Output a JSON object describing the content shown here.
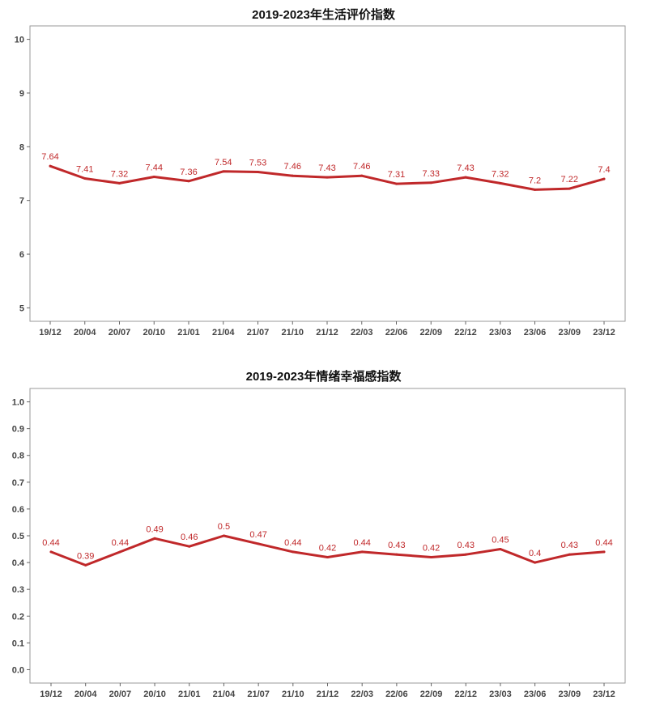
{
  "chart_data": [
    {
      "type": "line",
      "title": "2019-2023年生活评价指数",
      "xlabel": "",
      "ylabel": "",
      "categories": [
        "19/12",
        "20/04",
        "20/07",
        "20/10",
        "21/01",
        "21/04",
        "21/07",
        "21/10",
        "21/12",
        "22/03",
        "22/06",
        "22/09",
        "22/12",
        "23/03",
        "23/06",
        "23/09",
        "23/12"
      ],
      "series": [
        {
          "values": [
            7.64,
            7.41,
            7.32,
            7.44,
            7.36,
            7.54,
            7.53,
            7.46,
            7.43,
            7.46,
            7.31,
            7.33,
            7.43,
            7.32,
            7.2,
            7.22,
            7.4
          ]
        }
      ],
      "data_labels": [
        "7.64",
        "7.41",
        "7.32",
        "7.44",
        "7.36",
        "7.54",
        "7.53",
        "7.46",
        "7.43",
        "7.46",
        "7.31",
        "7.33",
        "7.43",
        "7.32",
        "7.2",
        "7.22",
        "7.4"
      ],
      "ylim": [
        4.75,
        10.25
      ],
      "yticks": [
        "5",
        "6",
        "7",
        "8",
        "9",
        "10"
      ],
      "grid": false,
      "line_color": "#c0282a"
    },
    {
      "type": "line",
      "title": "2019-2023年情绪幸福感指数",
      "xlabel": "",
      "ylabel": "",
      "categories": [
        "19/12",
        "20/04",
        "20/07",
        "20/10",
        "21/01",
        "21/04",
        "21/07",
        "21/10",
        "21/12",
        "22/03",
        "22/06",
        "22/09",
        "22/12",
        "23/03",
        "23/06",
        "23/09",
        "23/12"
      ],
      "series": [
        {
          "values": [
            0.44,
            0.39,
            0.44,
            0.49,
            0.46,
            0.5,
            0.47,
            0.44,
            0.42,
            0.44,
            0.43,
            0.42,
            0.43,
            0.45,
            0.4,
            0.43,
            0.44
          ]
        }
      ],
      "data_labels": [
        "0.44",
        "0.39",
        "0.44",
        "0.49",
        "0.46",
        "0.5",
        "0.47",
        "0.44",
        "0.42",
        "0.44",
        "0.43",
        "0.42",
        "0.43",
        "0.45",
        "0.4",
        "0.43",
        "0.44"
      ],
      "ylim": [
        -0.05,
        1.05
      ],
      "yticks": [
        "0.0",
        "0.1",
        "0.2",
        "0.3",
        "0.4",
        "0.5",
        "0.6",
        "0.7",
        "0.8",
        "0.9",
        "1.0"
      ],
      "grid": false,
      "line_color": "#c0282a"
    }
  ]
}
